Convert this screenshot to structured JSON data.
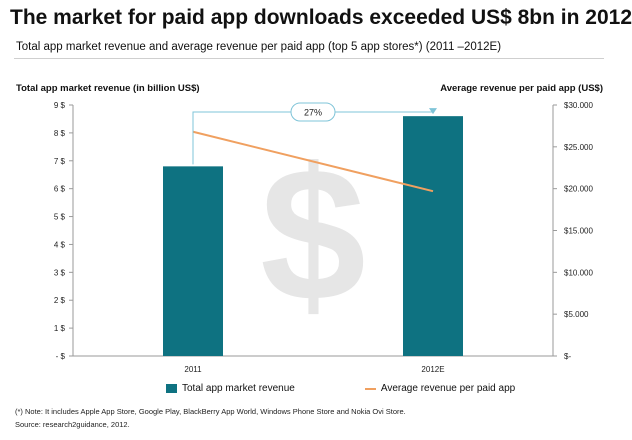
{
  "title": "The market for paid app downloads exceeded US$ 8bn in 2012",
  "subtitle": "Total app market revenue and average revenue per paid app (top 5 app stores*) (2011 –2012E)",
  "left_axis_title": "Total app market revenue (in billion US$)",
  "right_axis_title": "Average revenue per paid app  (US$)",
  "growth_label": "27%",
  "note": "(*) Note: It includes Apple App Store, Google Play, BlackBerry App World, Windows Phone Store and Nokia Ovi Store.",
  "source": "Source: research2guidance, 2012.",
  "legend": {
    "bar_label": "Total app market revenue",
    "line_label": "Average revenue per paid app"
  },
  "colors": {
    "bar": "#0e7281",
    "line": "#f0a060",
    "watermark": "#e6e6e6",
    "bracket": "#7fc4d8"
  },
  "watermark_icon": "dollar-sign-icon",
  "chart_data": {
    "type": "bar",
    "categories": [
      "2011",
      "2012E"
    ],
    "series": [
      {
        "name": "Total app market revenue",
        "type": "bar",
        "axis": "left",
        "values": [
          6.8,
          8.6
        ]
      },
      {
        "name": "Average revenue per paid app",
        "type": "line",
        "axis": "right",
        "values": [
          26800,
          19700
        ]
      }
    ],
    "left_axis": {
      "ylim": [
        0,
        9
      ],
      "ticks": [
        0,
        1,
        2,
        3,
        4,
        5,
        6,
        7,
        8,
        9
      ],
      "tick_labels": [
        "- $",
        "1 $",
        "2 $",
        "3 $",
        "4 $",
        "5 $",
        "6 $",
        "7 $",
        "8 $",
        "9 $"
      ]
    },
    "right_axis": {
      "ylim": [
        0,
        30000
      ],
      "ticks": [
        0,
        5000,
        10000,
        15000,
        20000,
        25000,
        30000
      ],
      "tick_labels": [
        "$-",
        "$5.000",
        "$10.000",
        "$15.000",
        "$20.000",
        "$25.000",
        "$30.000"
      ]
    },
    "annotation": {
      "text": "27%",
      "from": "2011",
      "to": "2012E"
    },
    "grid": false,
    "legend_position": "bottom"
  }
}
